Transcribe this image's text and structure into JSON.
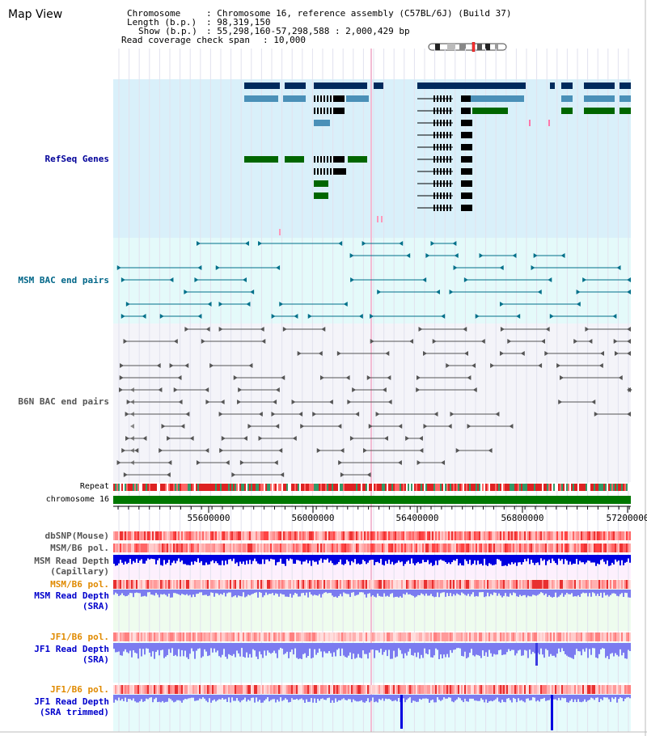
{
  "view_title": "Map View",
  "info": {
    "chromosome_key": "Chromosome",
    "chromosome_value": ": Chromosome 16, reference assembly (C57BL/6J) (Build 37)",
    "length_key": "Length (b.p.)",
    "length_value": ": 98,319,150",
    "show_key": "Show (b.p.)",
    "show_value": ": 55,298,160-57,298,588 : 2,000,429 bp",
    "span_key": "Read coverage check span",
    "span_value": ": 10,000"
  },
  "tracks": {
    "refseq": "RefSeq Genes",
    "msm_bac": "MSM BAC end pairs",
    "b6n_bac": "B6N BAC end pairs",
    "repeat": "Repeat",
    "chromosome": "chromosome 16",
    "dbsnp": "dbSNP(Mouse)",
    "msm_b6_pol_1": "MSM/B6 pol.",
    "msm_read_depth_cap_1": "MSM Read Depth",
    "msm_read_depth_cap_2": "(Capillary)",
    "msm_b6_pol_2": "MSM/B6 pol.",
    "msm_read_depth_sra_1": "MSM Read Depth",
    "msm_read_depth_sra_2": "(SRA)",
    "jf1_b6_pol_1": "JF1/B6 pol.",
    "jf1_read_depth_sra_1": "JF1 Read Depth",
    "jf1_read_depth_sra_2": "(SRA)",
    "jf1_b6_pol_2": "JF1/B6 pol.",
    "jf1_read_depth_trim_1": "JF1 Read Depth",
    "jf1_read_depth_trim_2": "(SRA trimmed)"
  },
  "axis": {
    "ticks": [
      "55600000",
      "56000000",
      "56400000",
      "56800000",
      "57200000"
    ]
  },
  "colors": {
    "refseq_bg": "#d9f0fa",
    "navy": "#002a5c",
    "steel": "#4a90b8",
    "green": "#006600",
    "msm_bg": "#e4fafa",
    "msm_line": "#00708a",
    "b6n_bg": "#f4f4f9",
    "b6n_line": "#666666",
    "label_navy": "#000099",
    "label_teal": "#006688",
    "label_gray": "#555555",
    "label_orange": "#e08a00",
    "label_blue": "#0000cc",
    "depth_blue": "#0000e0",
    "depth_light": "#7b7bf0"
  }
}
